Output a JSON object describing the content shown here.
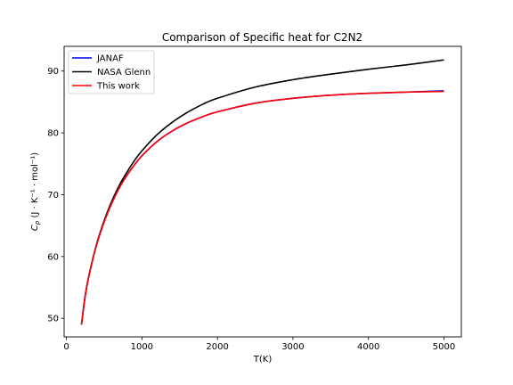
{
  "chart_data": {
    "type": "line",
    "title": "Comparison of Specific heat for C2N2",
    "xlabel": "T(K)",
    "ylabel": "C_p (J · K⁻¹ · mol⁻¹)",
    "xlim": [
      -30,
      5230
    ],
    "ylim": [
      47,
      94
    ],
    "xticks": [
      0,
      1000,
      2000,
      3000,
      4000,
      5000
    ],
    "yticks": [
      50,
      60,
      70,
      80,
      90
    ],
    "grid": false,
    "legend_position": "top-left",
    "x": [
      200,
      250,
      300,
      400,
      500,
      600,
      700,
      800,
      900,
      1000,
      1200,
      1400,
      1600,
      1800,
      2000,
      2500,
      3000,
      3500,
      4000,
      4500,
      5000
    ],
    "series": [
      {
        "name": "JANAF",
        "color": "#0000ff",
        "values": [
          49.0,
          53.7,
          57.0,
          61.9,
          65.6,
          68.6,
          71.1,
          73.1,
          74.8,
          76.3,
          78.6,
          80.3,
          81.6,
          82.6,
          83.4,
          84.8,
          85.6,
          86.1,
          86.4,
          86.6,
          86.8
        ]
      },
      {
        "name": "NASA Glenn",
        "color": "#000000",
        "values": [
          49.0,
          53.7,
          57.0,
          62.0,
          65.8,
          68.9,
          71.5,
          73.6,
          75.5,
          77.1,
          79.7,
          81.7,
          83.3,
          84.6,
          85.6,
          87.4,
          88.6,
          89.5,
          90.3,
          91.0,
          91.8
        ]
      },
      {
        "name": "This work",
        "color": "#ff0000",
        "values": [
          49.0,
          53.7,
          57.0,
          61.9,
          65.6,
          68.6,
          71.1,
          73.1,
          74.8,
          76.3,
          78.6,
          80.3,
          81.6,
          82.6,
          83.4,
          84.8,
          85.6,
          86.1,
          86.4,
          86.6,
          86.7
        ]
      }
    ]
  }
}
